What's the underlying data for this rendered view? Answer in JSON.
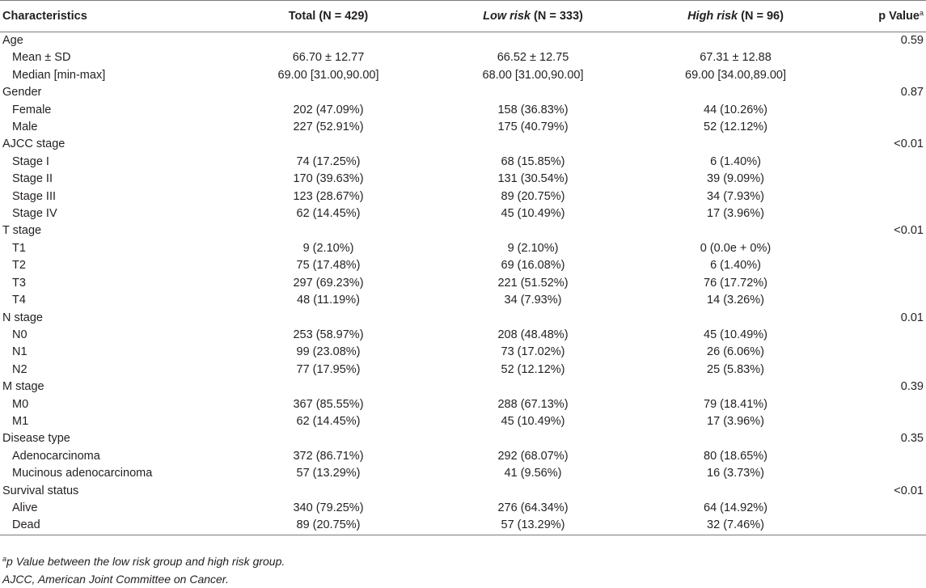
{
  "table": {
    "header": {
      "characteristics": "Characteristics",
      "total": "Total (N = 429)",
      "low_risk_italic": "Low risk",
      "low_risk_n": " (N = 333)",
      "high_risk_italic": "High risk",
      "high_risk_n": " (N = 96)",
      "p_value": "p Value",
      "p_value_sup": "a"
    },
    "rows": [
      {
        "type": "group",
        "label": "Age",
        "total": "",
        "low": "",
        "high": "",
        "p": "0.59"
      },
      {
        "type": "sub",
        "label": "Mean ± SD",
        "total": "66.70 ± 12.77",
        "low": "66.52 ± 12.75",
        "high": "67.31 ± 12.88",
        "p": ""
      },
      {
        "type": "sub",
        "label": "Median [min-max]",
        "total": "69.00 [31.00,90.00]",
        "low": "68.00 [31.00,90.00]",
        "high": "69.00 [34.00,89.00]",
        "p": ""
      },
      {
        "type": "group",
        "label": "Gender",
        "total": "",
        "low": "",
        "high": "",
        "p": "0.87"
      },
      {
        "type": "sub",
        "label": "Female",
        "total": "202 (47.09%)",
        "low": "158 (36.83%)",
        "high": "44 (10.26%)",
        "p": ""
      },
      {
        "type": "sub",
        "label": "Male",
        "total": "227 (52.91%)",
        "low": "175 (40.79%)",
        "high": "52 (12.12%)",
        "p": ""
      },
      {
        "type": "group",
        "label": "AJCC stage",
        "total": "",
        "low": "",
        "high": "",
        "p": "<0.01"
      },
      {
        "type": "sub",
        "label": "Stage I",
        "total": "74 (17.25%)",
        "low": "68 (15.85%)",
        "high": "6 (1.40%)",
        "p": ""
      },
      {
        "type": "sub",
        "label": "Stage II",
        "total": "170 (39.63%)",
        "low": "131 (30.54%)",
        "high": "39 (9.09%)",
        "p": ""
      },
      {
        "type": "sub",
        "label": "Stage III",
        "total": "123 (28.67%)",
        "low": "89 (20.75%)",
        "high": "34 (7.93%)",
        "p": ""
      },
      {
        "type": "sub",
        "label": "Stage IV",
        "total": "62 (14.45%)",
        "low": "45 (10.49%)",
        "high": "17 (3.96%)",
        "p": ""
      },
      {
        "type": "group",
        "label": "T stage",
        "total": "",
        "low": "",
        "high": "",
        "p": "<0.01"
      },
      {
        "type": "sub",
        "label": "T1",
        "total": "9 (2.10%)",
        "low": "9 (2.10%)",
        "high": "0 (0.0e + 0%)",
        "p": ""
      },
      {
        "type": "sub",
        "label": "T2",
        "total": "75 (17.48%)",
        "low": "69 (16.08%)",
        "high": "6 (1.40%)",
        "p": ""
      },
      {
        "type": "sub",
        "label": "T3",
        "total": "297 (69.23%)",
        "low": "221 (51.52%)",
        "high": "76 (17.72%)",
        "p": ""
      },
      {
        "type": "sub",
        "label": "T4",
        "total": "48 (11.19%)",
        "low": "34 (7.93%)",
        "high": "14 (3.26%)",
        "p": ""
      },
      {
        "type": "group",
        "label": "N stage",
        "total": "",
        "low": "",
        "high": "",
        "p": "0.01"
      },
      {
        "type": "sub",
        "label": "N0",
        "total": "253 (58.97%)",
        "low": "208 (48.48%)",
        "high": "45 (10.49%)",
        "p": ""
      },
      {
        "type": "sub",
        "label": "N1",
        "total": "99 (23.08%)",
        "low": "73 (17.02%)",
        "high": "26 (6.06%)",
        "p": ""
      },
      {
        "type": "sub",
        "label": "N2",
        "total": "77 (17.95%)",
        "low": "52 (12.12%)",
        "high": "25 (5.83%)",
        "p": ""
      },
      {
        "type": "group",
        "label": "M stage",
        "total": "",
        "low": "",
        "high": "",
        "p": "0.39"
      },
      {
        "type": "sub",
        "label": "M0",
        "total": "367 (85.55%)",
        "low": "288 (67.13%)",
        "high": "79 (18.41%)",
        "p": ""
      },
      {
        "type": "sub",
        "label": "M1",
        "total": "62 (14.45%)",
        "low": "45 (10.49%)",
        "high": "17 (3.96%)",
        "p": ""
      },
      {
        "type": "group",
        "label": "Disease type",
        "total": "",
        "low": "",
        "high": "",
        "p": "0.35"
      },
      {
        "type": "sub",
        "label": "Adenocarcinoma",
        "total": "372 (86.71%)",
        "low": "292 (68.07%)",
        "high": "80 (18.65%)",
        "p": ""
      },
      {
        "type": "sub",
        "label": "Mucinous adenocarcinoma",
        "total": "57 (13.29%)",
        "low": "41 (9.56%)",
        "high": "16 (3.73%)",
        "p": ""
      },
      {
        "type": "group",
        "label": "Survival status",
        "total": "",
        "low": "",
        "high": "",
        "p": "<0.01"
      },
      {
        "type": "sub",
        "label": "Alive",
        "total": "340 (79.25%)",
        "low": "276 (64.34%)",
        "high": "64 (14.92%)",
        "p": ""
      },
      {
        "type": "sub",
        "label": "Dead",
        "total": "89 (20.75%)",
        "low": "57 (13.29%)",
        "high": "32 (7.46%)",
        "p": ""
      }
    ]
  },
  "footnotes": {
    "note_a_sup": "a",
    "note_a_text": "p Value between the low risk group and high risk group.",
    "note_ajcc": "AJCC, American Joint Committee on Cancer."
  }
}
